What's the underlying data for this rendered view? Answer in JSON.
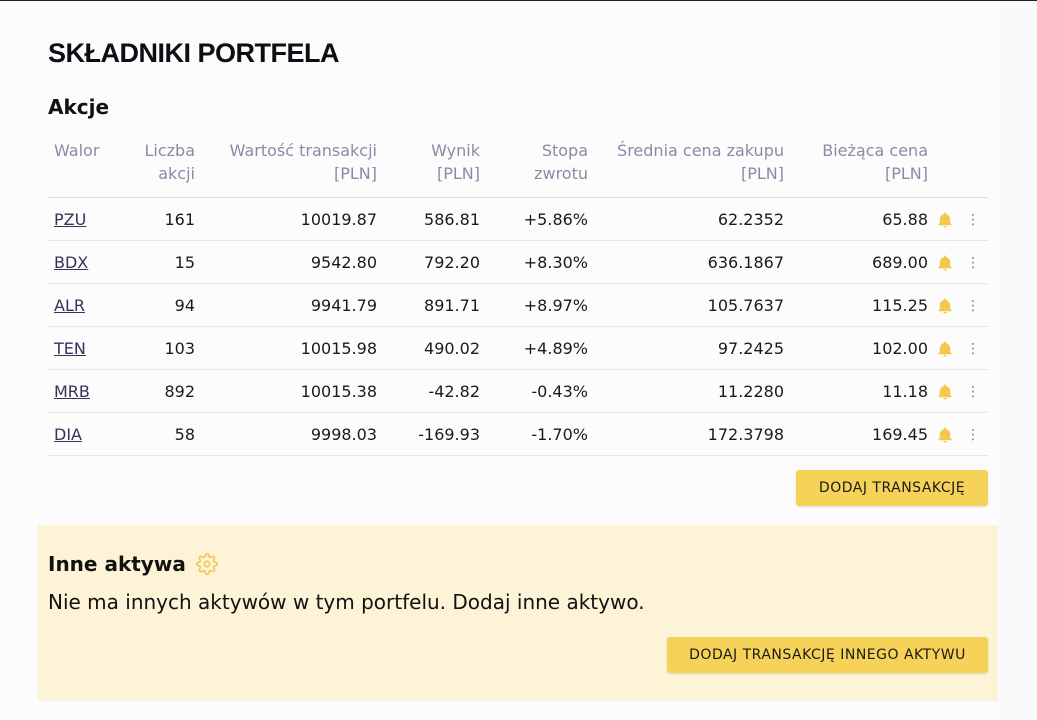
{
  "page": {
    "title": "SKŁADNIKI PORTFELA"
  },
  "stocks": {
    "section_title": "Akcje",
    "headers": {
      "walor": "Walor",
      "liczba": [
        "Liczba",
        "akcji"
      ],
      "wartosc": [
        "Wartość transakcji",
        "[PLN]"
      ],
      "wynik": [
        "Wynik",
        "[PLN]"
      ],
      "stopa": [
        "Stopa",
        "zwrotu"
      ],
      "srednia": [
        "Średnia cena zakupu",
        "[PLN]"
      ],
      "biezaca": [
        "Bieżąca cena",
        "[PLN]"
      ]
    },
    "rows": [
      {
        "walor": "PZU",
        "liczba": "161",
        "wartosc": "10019.87",
        "wynik": "586.81",
        "stopa": "+5.86%",
        "srednia": "62.2352",
        "biezaca": "65.88",
        "positive": true
      },
      {
        "walor": "BDX",
        "liczba": "15",
        "wartosc": "9542.80",
        "wynik": "792.20",
        "stopa": "+8.30%",
        "srednia": "636.1867",
        "biezaca": "689.00",
        "positive": true
      },
      {
        "walor": "ALR",
        "liczba": "94",
        "wartosc": "9941.79",
        "wynik": "891.71",
        "stopa": "+8.97%",
        "srednia": "105.7637",
        "biezaca": "115.25",
        "positive": true
      },
      {
        "walor": "TEN",
        "liczba": "103",
        "wartosc": "10015.98",
        "wynik": "490.02",
        "stopa": "+4.89%",
        "srednia": "97.2425",
        "biezaca": "102.00",
        "positive": true
      },
      {
        "walor": "MRB",
        "liczba": "892",
        "wartosc": "10015.38",
        "wynik": "-42.82",
        "stopa": "-0.43%",
        "srednia": "11.2280",
        "biezaca": "11.18",
        "positive": false
      },
      {
        "walor": "DIA",
        "liczba": "58",
        "wartosc": "9998.03",
        "wynik": "-169.93",
        "stopa": "-1.70%",
        "srednia": "172.3798",
        "biezaca": "169.45",
        "positive": false
      }
    ],
    "add_button": "DODAJ TRANSAKCJĘ"
  },
  "other_assets": {
    "title": "Inne aktywa",
    "empty_text": "Nie ma innych aktywów w tym portfelu. Dodaj inne aktywo.",
    "add_button": "DODAJ TRANSAKCJĘ INNEGO AKTYWU"
  },
  "icons": {
    "alert": "bell-icon",
    "menu": "kebab-menu-icon",
    "settings": "gear-icon"
  },
  "colors": {
    "accent": "#f7d258",
    "positive": "#4caf7a",
    "negative": "#e05757",
    "panel": "#fdf3d7"
  }
}
